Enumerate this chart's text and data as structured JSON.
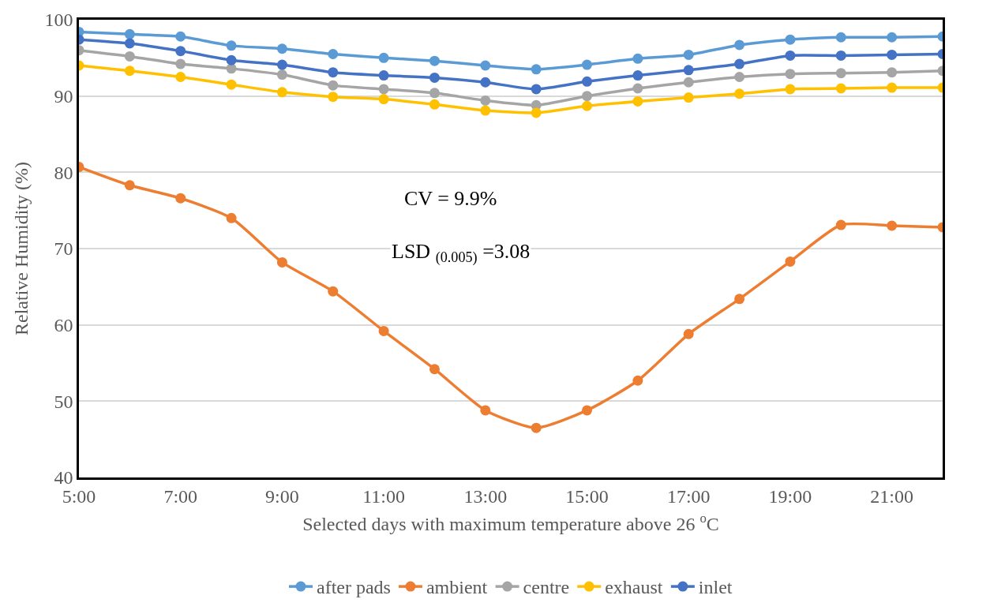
{
  "chart_data": {
    "type": "line",
    "xlabel": "Selected days with maximum temperature above 26 $^{o}$C",
    "ylabel": "Relative Humidity (%)",
    "x": [
      5,
      6,
      7,
      8,
      9,
      10,
      11,
      12,
      13,
      14,
      15,
      16,
      17,
      18,
      19,
      20,
      21,
      22
    ],
    "xlim": [
      5,
      22
    ],
    "xticks": [
      {
        "value": 5,
        "label": "5:00"
      },
      {
        "value": 7,
        "label": "7:00"
      },
      {
        "value": 9,
        "label": "9:00"
      },
      {
        "value": 11,
        "label": "11:00"
      },
      {
        "value": 13,
        "label": "13:00"
      },
      {
        "value": 15,
        "label": "15:00"
      },
      {
        "value": 17,
        "label": "17:00"
      },
      {
        "value": 19,
        "label": "19:00"
      },
      {
        "value": 21,
        "label": "21:00"
      }
    ],
    "ylim": [
      40,
      100
    ],
    "yticks": [
      40,
      50,
      60,
      70,
      80,
      90,
      100
    ],
    "series": [
      {
        "name": "after pads",
        "color": "#5b9bd5",
        "values": [
          98.4,
          98.1,
          97.8,
          96.6,
          96.2,
          95.5,
          95.0,
          94.6,
          94.0,
          93.5,
          94.1,
          94.9,
          95.4,
          96.7,
          97.4,
          97.7,
          97.7,
          97.8
        ]
      },
      {
        "name": "ambient",
        "color": "#ed7d31",
        "values": [
          80.7,
          78.3,
          76.6,
          74.0,
          68.2,
          64.4,
          59.2,
          54.2,
          48.8,
          46.5,
          48.8,
          52.7,
          58.8,
          63.4,
          68.3,
          73.1,
          73.0,
          72.8
        ]
      },
      {
        "name": "centre",
        "color": "#a5a5a5",
        "values": [
          96.0,
          95.2,
          94.2,
          93.6,
          92.8,
          91.4,
          90.9,
          90.4,
          89.4,
          88.8,
          90.0,
          91.0,
          91.8,
          92.5,
          92.9,
          93.0,
          93.1,
          93.3
        ]
      },
      {
        "name": "exhaust",
        "color": "#ffc000",
        "values": [
          94.0,
          93.3,
          92.5,
          91.5,
          90.5,
          89.9,
          89.6,
          88.9,
          88.1,
          87.8,
          88.7,
          89.3,
          89.8,
          90.3,
          90.9,
          91.0,
          91.1,
          91.1
        ]
      },
      {
        "name": "inlet",
        "color": "#4472c4",
        "values": [
          97.4,
          96.9,
          95.9,
          94.7,
          94.1,
          93.1,
          92.7,
          92.4,
          91.8,
          90.9,
          91.9,
          92.7,
          93.4,
          94.2,
          95.3,
          95.3,
          95.4,
          95.5
        ]
      }
    ],
    "annotations": [
      "CV = 9.9%",
      "LSD $_{(0.005)}$ =3.08"
    ],
    "grid": "y",
    "legend": "bottom",
    "marker": "circle",
    "line_style": "solid"
  }
}
